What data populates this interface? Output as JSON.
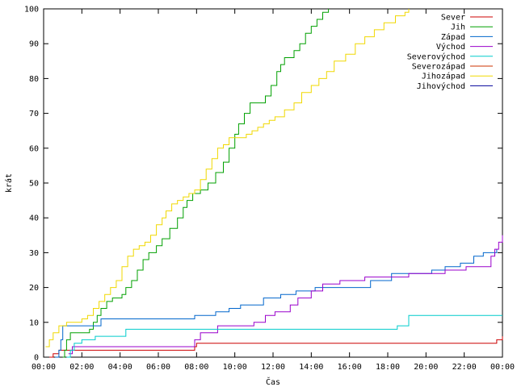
{
  "chart_data": {
    "type": "line",
    "xlabel": "Čas",
    "ylabel": "krát",
    "xlim": [
      0,
      24
    ],
    "ylim": [
      0,
      100
    ],
    "x_ticks": [
      {
        "value": 0,
        "label": "00:00"
      },
      {
        "value": 2,
        "label": "02:00"
      },
      {
        "value": 4,
        "label": "04:00"
      },
      {
        "value": 6,
        "label": "06:00"
      },
      {
        "value": 8,
        "label": "08:00"
      },
      {
        "value": 10,
        "label": "10:00"
      },
      {
        "value": 12,
        "label": "12:00"
      },
      {
        "value": 14,
        "label": "14:00"
      },
      {
        "value": 16,
        "label": "16:00"
      },
      {
        "value": 18,
        "label": "18:00"
      },
      {
        "value": 20,
        "label": "20:00"
      },
      {
        "value": 22,
        "label": "22:00"
      },
      {
        "value": 24,
        "label": "00:00"
      }
    ],
    "y_ticks": [
      0,
      10,
      20,
      30,
      40,
      50,
      60,
      70,
      80,
      90,
      100
    ],
    "grid": false,
    "legend_position": "top-right",
    "step": true,
    "series": [
      {
        "name": "Sever",
        "color": "#cc0000",
        "x": [
          0.3,
          0.5,
          0.8,
          7.9,
          8.0,
          23.7,
          24
        ],
        "y": [
          0,
          1,
          2,
          3,
          4,
          5,
          6
        ]
      },
      {
        "name": "Jih",
        "color": "#00a000",
        "x": [
          1.0,
          1.1,
          1.2,
          1.4,
          2.4,
          2.6,
          2.8,
          3.0,
          3.3,
          3.6,
          4.1,
          4.3,
          4.6,
          4.9,
          5.2,
          5.5,
          5.9,
          6.2,
          6.6,
          7.0,
          7.3,
          7.5,
          7.8,
          8.2,
          8.6,
          9.0,
          9.4,
          9.7,
          10.0,
          10.2,
          10.5,
          10.8,
          11.6,
          11.9,
          12.2,
          12.4,
          12.6,
          13.1,
          13.4,
          13.7,
          14.0,
          14.3,
          14.6,
          14.9
        ],
        "y": [
          0,
          2,
          5,
          7,
          8,
          10,
          12,
          14,
          16,
          17,
          18,
          20,
          22,
          25,
          28,
          30,
          32,
          34,
          37,
          40,
          43,
          45,
          47,
          48,
          50,
          53,
          56,
          60,
          64,
          67,
          70,
          73,
          75,
          78,
          82,
          84,
          86,
          88,
          90,
          93,
          95,
          97,
          99,
          100
        ]
      },
      {
        "name": "Západ",
        "color": "#0066cc",
        "x": [
          0.6,
          0.8,
          0.9,
          1.0,
          2.6,
          3.0,
          7.9,
          9.0,
          9.7,
          10.3,
          11.5,
          12.4,
          13.2,
          14.2,
          17.1,
          18.2,
          20.3,
          21.0,
          21.8,
          22.5,
          23.0,
          23.7
        ],
        "y": [
          0,
          2,
          5,
          9,
          9,
          11,
          12,
          13,
          14,
          15,
          17,
          18,
          19,
          20,
          22,
          24,
          25,
          26,
          27,
          29,
          30,
          31
        ]
      },
      {
        "name": "Východ",
        "color": "#9900cc",
        "x": [
          1.3,
          1.5,
          7.7,
          7.9,
          8.2,
          9.1,
          11.0,
          11.6,
          12.1,
          12.9,
          13.3,
          14.0,
          14.6,
          15.5,
          16.8,
          19.1,
          21.0,
          22.1,
          23.4,
          23.6,
          23.8,
          24.0
        ],
        "y": [
          1,
          3,
          3,
          5,
          7,
          9,
          10,
          12,
          13,
          15,
          17,
          19,
          21,
          22,
          23,
          24,
          25,
          26,
          29,
          31,
          33,
          35
        ]
      },
      {
        "name": "Severovýchod",
        "color": "#00cccc",
        "x": [
          1.2,
          1.4,
          1.6,
          2.0,
          2.7,
          4.3,
          8.3,
          18.5,
          19.1,
          24
        ],
        "y": [
          0,
          2,
          4,
          5,
          6,
          8,
          8,
          9,
          12,
          12
        ]
      },
      {
        "name": "Severozápad",
        "color": "#cc3300",
        "x": [],
        "y": []
      },
      {
        "name": "Jihozápad",
        "color": "#f0d800",
        "x": [
          0.1,
          0.3,
          0.5,
          0.8,
          1.2,
          1.6,
          2.0,
          2.3,
          2.6,
          2.9,
          3.2,
          3.5,
          3.8,
          4.1,
          4.4,
          4.7,
          5.0,
          5.3,
          5.6,
          5.9,
          6.2,
          6.4,
          6.7,
          7.0,
          7.3,
          7.6,
          7.9,
          8.2,
          8.5,
          8.8,
          9.1,
          9.4,
          9.7,
          10.3,
          10.6,
          10.9,
          11.2,
          11.5,
          11.8,
          12.1,
          12.6,
          13.1,
          13.5,
          14.0,
          14.4,
          14.8,
          15.2,
          15.8,
          16.3,
          16.8,
          17.3,
          17.8,
          18.4,
          18.9,
          19.1
        ],
        "y": [
          3,
          5,
          7,
          9,
          10,
          10,
          11,
          12,
          14,
          16,
          18,
          20,
          22,
          26,
          29,
          31,
          32,
          33,
          35,
          38,
          40,
          42,
          44,
          45,
          46,
          47,
          48,
          51,
          54,
          57,
          60,
          61,
          63,
          63,
          64,
          65,
          66,
          67,
          68,
          69,
          71,
          73,
          76,
          78,
          80,
          82,
          85,
          87,
          90,
          92,
          94,
          96,
          98,
          99,
          100
        ]
      },
      {
        "name": "Jihovýchod",
        "color": "#000099",
        "x": [],
        "y": []
      }
    ]
  }
}
